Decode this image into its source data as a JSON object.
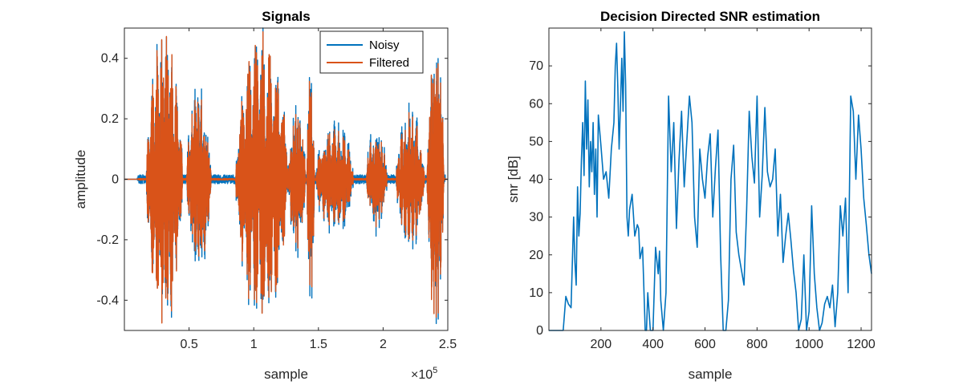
{
  "chart_data": [
    {
      "type": "line",
      "title": "Signals",
      "xlabel": "sample",
      "ylabel": "amplitude",
      "xlim": [
        0,
        250000
      ],
      "ylim": [
        -0.5,
        0.5
      ],
      "xticks": [
        50000,
        100000,
        150000,
        200000,
        250000
      ],
      "xticklabels": [
        "0.5",
        "1",
        "1.5",
        "2",
        "2.5"
      ],
      "x_exponent_label": "×10",
      "x_exponent_power": "5",
      "yticks": [
        -0.4,
        -0.2,
        0,
        0.2,
        0.4
      ],
      "yticklabels": [
        "-0.4",
        "-0.2",
        "0",
        "0.2",
        "0.4"
      ],
      "grid": false,
      "legend_position": "top-right",
      "series": [
        {
          "name": "Noisy",
          "color": "#0072BD",
          "noise_amplitude": 0.015,
          "bursts": [
            {
              "start": 17000,
              "end": 45000,
              "peak": 0.5
            },
            {
              "start": 48000,
              "end": 67000,
              "peak": 0.33
            },
            {
              "start": 86000,
              "end": 127000,
              "peak": 0.5
            },
            {
              "start": 127000,
              "end": 140000,
              "peak": 0.25
            },
            {
              "start": 141000,
              "end": 147000,
              "peak": 0.44
            },
            {
              "start": 148000,
              "end": 177000,
              "peak": 0.2
            },
            {
              "start": 187000,
              "end": 203000,
              "peak": 0.18
            },
            {
              "start": 210000,
              "end": 232000,
              "peak": 0.24
            },
            {
              "start": 234000,
              "end": 247000,
              "peak": 0.5
            }
          ]
        },
        {
          "name": "Filtered",
          "color": "#D95319",
          "noise_amplitude": 0.003,
          "bursts": [
            {
              "start": 17000,
              "end": 45000,
              "peak": 0.49
            },
            {
              "start": 48000,
              "end": 67000,
              "peak": 0.3
            },
            {
              "start": 86000,
              "end": 127000,
              "peak": 0.49
            },
            {
              "start": 127000,
              "end": 140000,
              "peak": 0.23
            },
            {
              "start": 141000,
              "end": 147000,
              "peak": 0.41
            },
            {
              "start": 148000,
              "end": 177000,
              "peak": 0.18
            },
            {
              "start": 187000,
              "end": 203000,
              "peak": 0.16
            },
            {
              "start": 210000,
              "end": 232000,
              "peak": 0.22
            },
            {
              "start": 234000,
              "end": 247000,
              "peak": 0.49
            }
          ]
        }
      ]
    },
    {
      "type": "line",
      "title": "Decision Directed SNR estimation",
      "xlabel": "sample",
      "ylabel": "snr [dB]",
      "xlim": [
        0,
        1240
      ],
      "ylim": [
        0,
        80
      ],
      "xticks": [
        200,
        400,
        600,
        800,
        1000,
        1200
      ],
      "xticklabels": [
        "200",
        "400",
        "600",
        "800",
        "1000",
        "1200"
      ],
      "yticks": [
        0,
        10,
        20,
        30,
        40,
        50,
        60,
        70
      ],
      "yticklabels": [
        "0",
        "10",
        "20",
        "30",
        "40",
        "50",
        "60",
        "70"
      ],
      "grid": false,
      "series": [
        {
          "color": "#0072BD",
          "x": [
            0,
            55,
            65,
            75,
            85,
            95,
            100,
            105,
            110,
            115,
            120,
            125,
            130,
            135,
            140,
            145,
            150,
            155,
            160,
            165,
            170,
            175,
            180,
            185,
            190,
            200,
            210,
            220,
            230,
            240,
            250,
            255,
            260,
            265,
            270,
            275,
            280,
            285,
            290,
            295,
            300,
            305,
            310,
            320,
            330,
            340,
            345,
            350,
            360,
            370,
            375,
            380,
            390,
            400,
            410,
            420,
            425,
            430,
            440,
            450,
            460,
            470,
            480,
            490,
            500,
            510,
            520,
            530,
            540,
            550,
            560,
            570,
            580,
            590,
            600,
            610,
            620,
            630,
            640,
            650,
            660,
            670,
            680,
            690,
            700,
            710,
            720,
            730,
            740,
            750,
            760,
            770,
            780,
            790,
            800,
            810,
            820,
            830,
            840,
            850,
            860,
            870,
            880,
            890,
            900,
            910,
            920,
            930,
            940,
            950,
            960,
            970,
            980,
            990,
            1000,
            1010,
            1020,
            1030,
            1040,
            1050,
            1060,
            1070,
            1080,
            1090,
            1100,
            1110,
            1120,
            1130,
            1140,
            1150,
            1160,
            1170,
            1180,
            1190,
            1200,
            1210,
            1220,
            1230,
            1240
          ],
          "y": [
            0,
            0,
            9,
            7,
            6,
            30,
            18,
            12,
            38,
            25,
            31,
            45,
            55,
            41,
            66,
            48,
            61,
            38,
            50,
            42,
            55,
            36,
            48,
            30,
            57,
            49,
            40,
            42,
            35,
            48,
            55,
            70,
            76,
            64,
            48,
            60,
            72,
            58,
            79,
            65,
            30,
            25,
            32,
            36,
            25,
            28,
            27,
            19,
            22,
            0,
            0,
            10,
            0,
            0,
            22,
            15,
            21,
            8,
            0,
            10,
            62,
            42,
            55,
            27,
            45,
            58,
            38,
            50,
            62,
            55,
            30,
            22,
            48,
            40,
            35,
            46,
            52,
            30,
            43,
            53,
            20,
            0,
            0,
            8,
            40,
            49,
            26,
            20,
            16,
            12,
            32,
            58,
            46,
            39,
            62,
            30,
            41,
            59,
            42,
            38,
            40,
            48,
            25,
            36,
            18,
            25,
            31,
            24,
            16,
            10,
            0,
            3,
            20,
            0,
            5,
            33,
            15,
            6,
            0,
            2,
            7,
            9,
            6,
            12,
            1,
            10,
            33,
            25,
            35,
            10,
            62,
            58,
            40,
            57,
            48,
            35,
            28,
            20,
            15
          ]
        }
      ]
    }
  ]
}
